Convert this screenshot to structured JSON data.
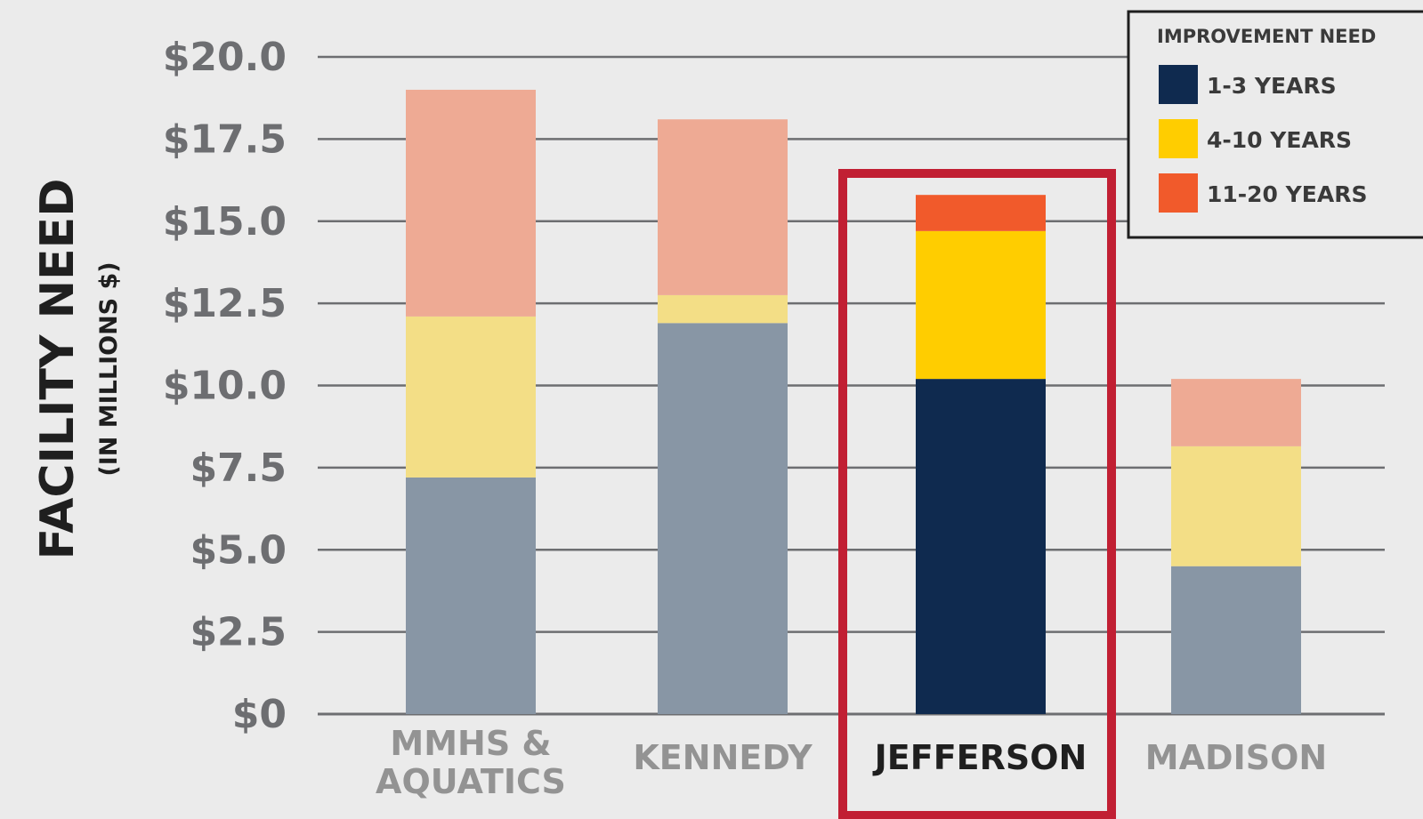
{
  "chart_data": {
    "type": "bar",
    "stacked": true,
    "ylabel": "FACILITY NEED",
    "ylabel_sub": "(IN MILLIONS $)",
    "ylim": [
      0,
      20
    ],
    "yticks": [
      0,
      2.5,
      5,
      7.5,
      10,
      12.5,
      15,
      17.5,
      20
    ],
    "ytick_labels": [
      "$0",
      "$2.5",
      "$5.0",
      "$7.5",
      "$10.0",
      "$12.5",
      "$15.0",
      "$17.5",
      "$20.0"
    ],
    "grid": true,
    "categories": [
      {
        "lines": [
          "MMHS &",
          "AQUATICS"
        ]
      },
      {
        "lines": [
          "KENNEDY"
        ]
      },
      {
        "lines": [
          "JEFFERSON"
        ]
      },
      {
        "lines": [
          "MADISON"
        ]
      }
    ],
    "highlighted_category": 2,
    "series": [
      {
        "name": "1-3 YEARS",
        "values": [
          7.2,
          11.9,
          10.2,
          4.5
        ],
        "color": "#0f2a4f",
        "muted_color": "#8896a5"
      },
      {
        "name": "4-10 YEARS",
        "values": [
          4.9,
          0.85,
          4.5,
          3.65
        ],
        "color": "#ffcd00",
        "muted_color": "#f3de86"
      },
      {
        "name": "11-20 YEARS",
        "values": [
          6.9,
          5.35,
          1.1,
          2.05
        ],
        "color": "#f15a2b",
        "muted_color": "#eeaa94"
      }
    ],
    "legend": {
      "title": "IMPROVEMENT NEED",
      "position": "top-right"
    },
    "colors": {
      "background": "#ebebeb",
      "gridline": "#6d6e71",
      "highlight_frame": "#c11f33"
    }
  }
}
